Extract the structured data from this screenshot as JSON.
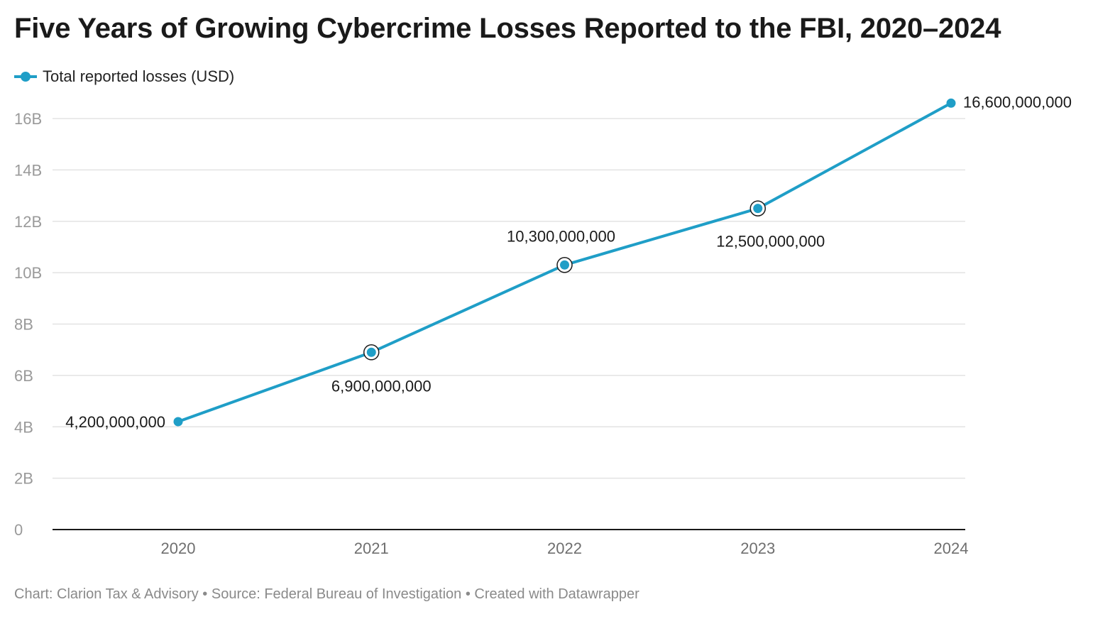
{
  "chart_data": {
    "type": "line",
    "title": "Five Years of Growing Cybercrime Losses Reported to the FBI, 2020–2024",
    "categories": [
      "2020",
      "2021",
      "2022",
      "2023",
      "2024"
    ],
    "series": [
      {
        "name": "Total reported losses (USD)",
        "values": [
          4200000000,
          6900000000,
          10300000000,
          12500000000,
          16600000000
        ],
        "data_labels": [
          "4,200,000,000",
          "6,900,000,000",
          "10,300,000,000",
          "12,500,000,000",
          "16,600,000,000"
        ],
        "highlighted": [
          false,
          true,
          true,
          true,
          false
        ]
      }
    ],
    "xlabel": "",
    "ylabel": "",
    "ylim": [
      0,
      16000000000
    ],
    "yticks": [
      0,
      2000000000,
      4000000000,
      6000000000,
      8000000000,
      10000000000,
      12000000000,
      14000000000,
      16000000000
    ],
    "ytick_labels": [
      "0",
      "2B",
      "4B",
      "6B",
      "8B",
      "10B",
      "12B",
      "14B",
      "16B"
    ],
    "grid": true,
    "legend_position": "top-left",
    "line_color": "#1f9ec7"
  },
  "footer": {
    "text": "Chart: Clarion Tax & Advisory • Source: Federal Bureau of Investigation • Created with Datawrapper"
  }
}
